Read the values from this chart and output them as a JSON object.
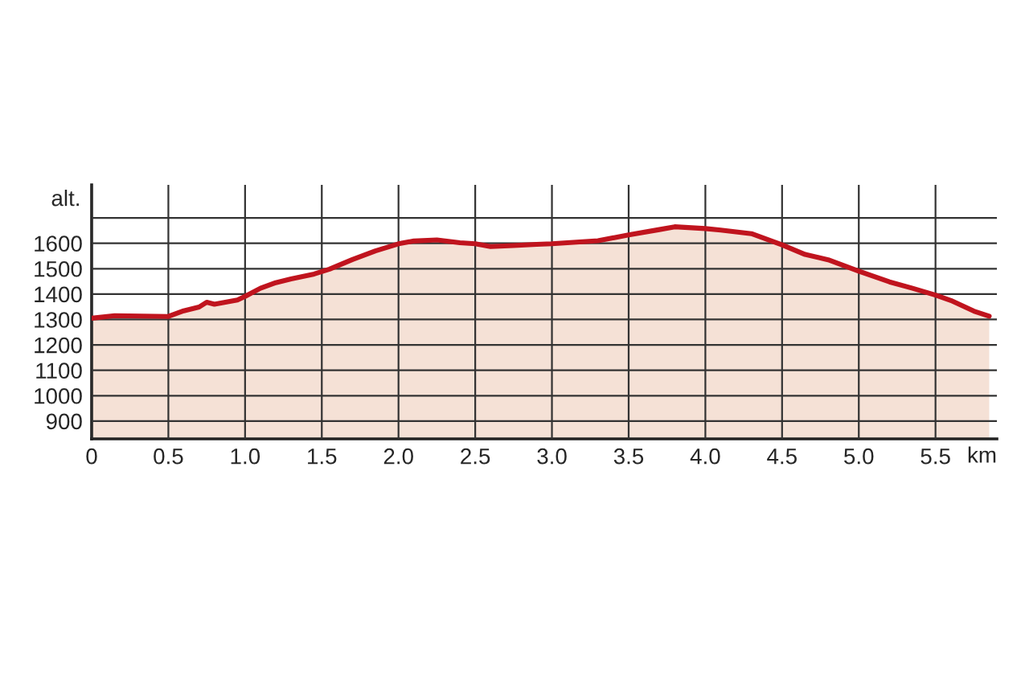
{
  "chart_data": {
    "type": "area",
    "ylabel": "alt.",
    "xlabel": "km",
    "x": [
      0,
      0.15,
      0.5,
      0.6,
      0.7,
      0.75,
      0.8,
      0.95,
      1.0,
      1.1,
      1.2,
      1.3,
      1.45,
      1.55,
      1.7,
      1.85,
      2.0,
      2.1,
      2.25,
      2.4,
      2.5,
      2.6,
      2.75,
      2.9,
      3.0,
      3.3,
      3.5,
      3.7,
      3.8,
      4.0,
      4.1,
      4.3,
      4.5,
      4.65,
      4.8,
      5.0,
      5.2,
      5.35,
      5.5,
      5.6,
      5.75,
      5.85
    ],
    "series": [
      {
        "color": "#c0141e",
        "values": [
          1305,
          1315,
          1312,
          1334,
          1349,
          1368,
          1360,
          1377,
          1391,
          1423,
          1445,
          1460,
          1479,
          1498,
          1536,
          1570,
          1598,
          1609,
          1613,
          1602,
          1598,
          1587,
          1591,
          1596,
          1598,
          1610,
          1633,
          1654,
          1665,
          1658,
          1652,
          1638,
          1594,
          1556,
          1535,
          1490,
          1448,
          1423,
          1396,
          1375,
          1333,
          1313
        ]
      }
    ],
    "xlim": [
      0,
      5.9
    ],
    "xticks": [
      0,
      {
        "value": 0.5,
        "label": "0.5"
      },
      {
        "value": 1,
        "label": "1.0"
      },
      {
        "value": 1.5,
        "label": "1.5"
      },
      {
        "value": 2,
        "label": "2.0"
      },
      {
        "value": 2.5,
        "label": "2.5"
      },
      {
        "value": 3,
        "label": "3.0"
      },
      {
        "value": 3.5,
        "label": "3.5"
      },
      {
        "value": 4,
        "label": "4.0"
      },
      {
        "value": 4.5,
        "label": "4.5"
      },
      {
        "value": 5,
        "label": "5.0"
      },
      {
        "value": 5.5,
        "label": "5.5"
      }
    ],
    "ylim": [
      830,
      1830
    ],
    "yticks": [
      900,
      1000,
      1100,
      1200,
      1300,
      1400,
      1500,
      1600,
      {
        "value": 1700,
        "label": null
      }
    ],
    "grid": true
  }
}
